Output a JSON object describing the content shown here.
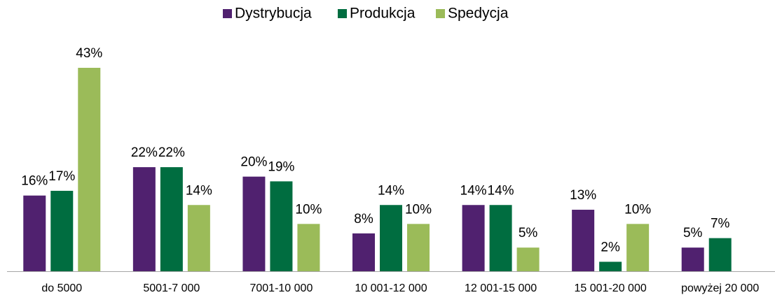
{
  "chart_data": {
    "type": "bar",
    "categories": [
      "do 5000",
      "5001-7 000",
      "7001-10 000",
      "10 001-12 000",
      "12 001-15 000",
      "15 001-20 000",
      "powyżej 20 000"
    ],
    "series": [
      {
        "name": "Dystrybucja",
        "color": "#50216f",
        "values": [
          16,
          22,
          20,
          8,
          14,
          13,
          5
        ],
        "value_labels": [
          "16%",
          "22%",
          "20%",
          "8%",
          "14%",
          "13%",
          "5%"
        ]
      },
      {
        "name": "Produkcja",
        "color": "#006d40",
        "values": [
          17,
          22,
          19,
          14,
          14,
          2,
          7
        ],
        "value_labels": [
          "17%",
          "22%",
          "19%",
          "14%",
          "14%",
          "2%",
          "7%"
        ]
      },
      {
        "name": "Spedycja",
        "color": "#9bbb59",
        "values": [
          43,
          14,
          10,
          10,
          5,
          10,
          null
        ],
        "value_labels": [
          "43%",
          "14%",
          "10%",
          "10%",
          "5%",
          "10%",
          null
        ]
      }
    ],
    "legend": "top"
  }
}
